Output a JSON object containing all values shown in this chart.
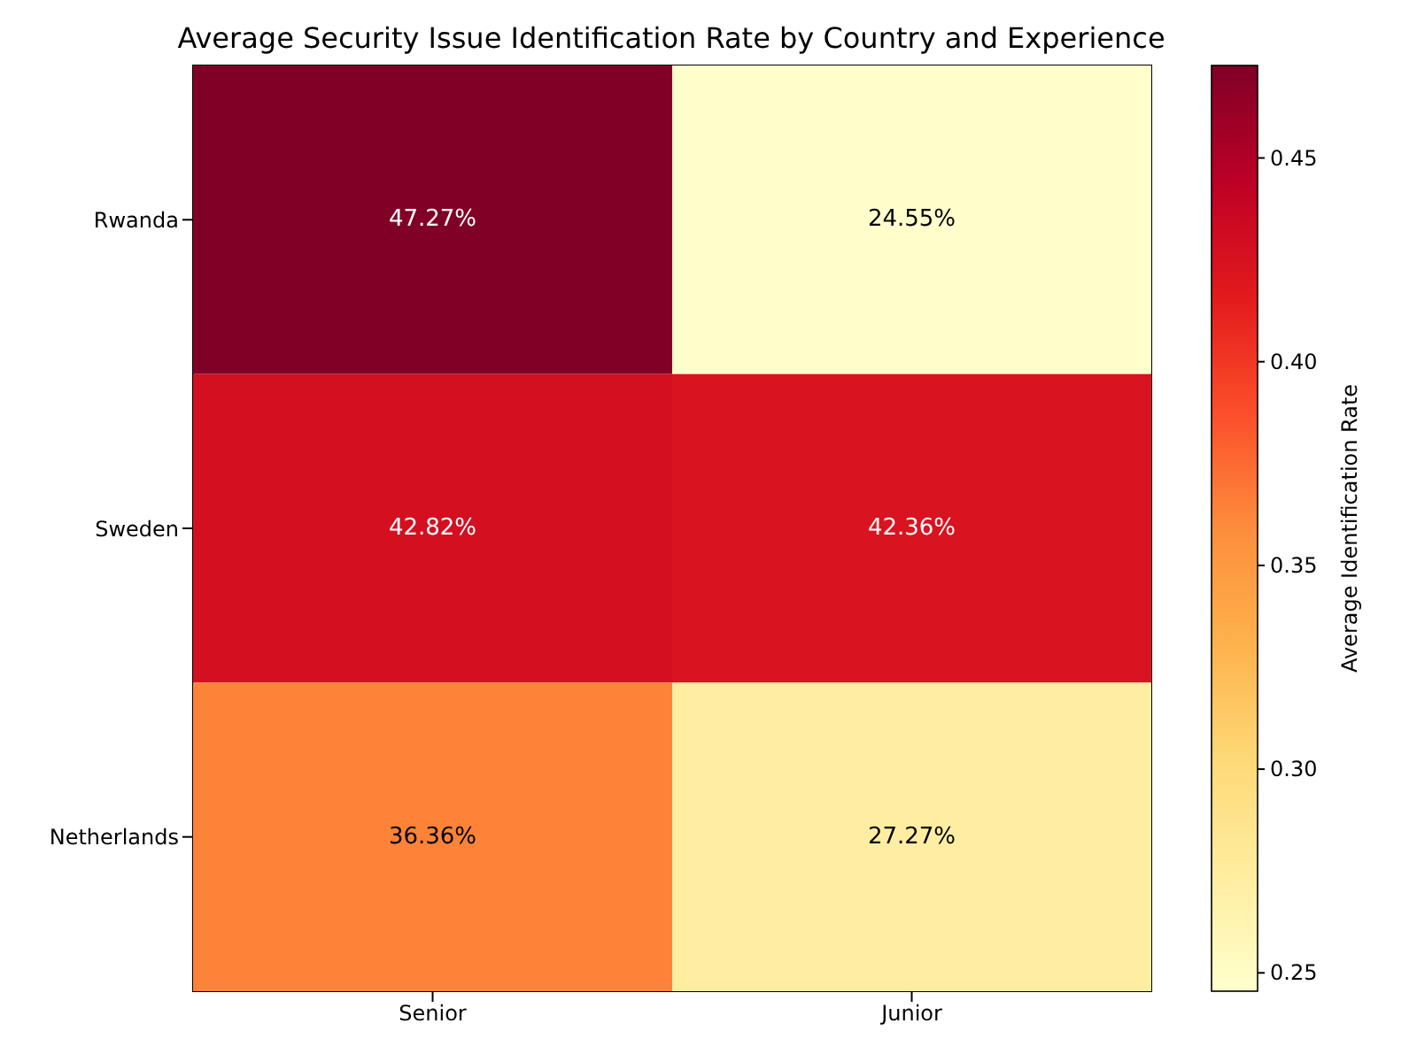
{
  "chart_data": {
    "type": "heatmap",
    "title": "Average Security Issue Identification Rate by Country and Experience",
    "categories": [
      "Senior",
      "Junior"
    ],
    "y_categories": [
      "Rwanda",
      "Sweden",
      "Netherlands"
    ],
    "cells": [
      [
        0.4727,
        0.2455
      ],
      [
        0.4282,
        0.4236
      ],
      [
        0.3636,
        0.2727
      ]
    ],
    "cell_labels": [
      [
        "47.27%",
        "24.55%"
      ],
      [
        "42.82%",
        "42.36%"
      ],
      [
        "36.36%",
        "27.27%"
      ]
    ],
    "clim": [
      0.2455,
      0.4727
    ],
    "cticks": [
      0.25,
      {
        "value": 0.3,
        "label": "0.30"
      },
      0.35,
      {
        "value": 0.4,
        "label": "0.40"
      },
      0.45
    ],
    "clabel": "Average Identification Rate"
  }
}
